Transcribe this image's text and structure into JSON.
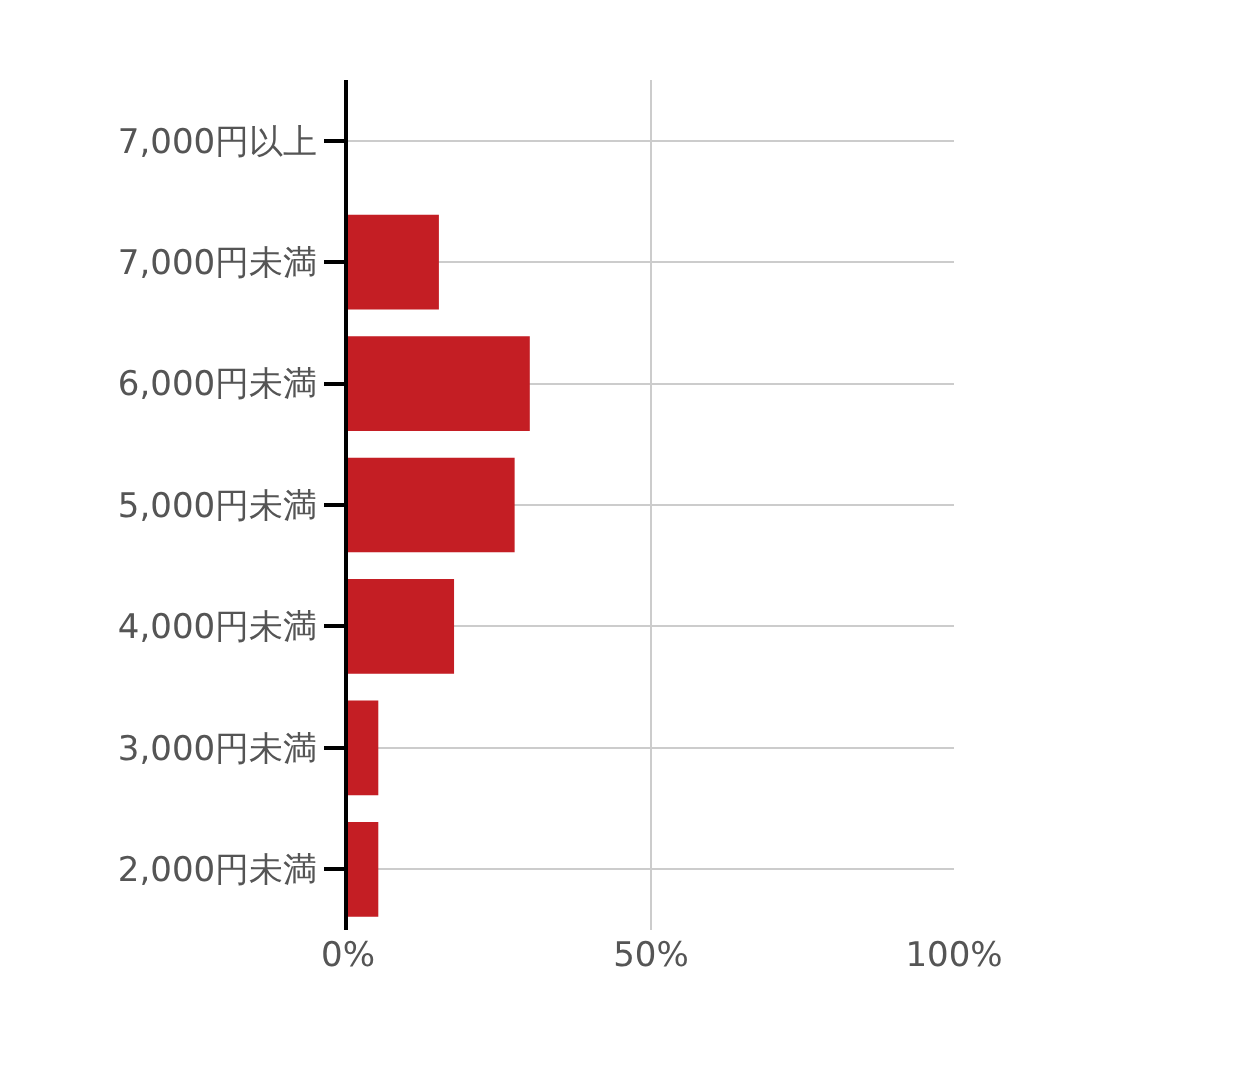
{
  "chart_data": {
    "type": "bar",
    "orientation": "horizontal",
    "categories": [
      "7,000円以上",
      "7,000円未満",
      "6,000円未満",
      "5,000円未満",
      "4,000円未満",
      "3,000円未満",
      "2,000円未満"
    ],
    "values": [
      0,
      15,
      30,
      27.5,
      17.5,
      5,
      5
    ],
    "color": "#c41e24",
    "xlim": [
      0,
      100
    ],
    "xticks": [
      {
        "value": 0,
        "label": "0%"
      },
      {
        "value": 50,
        "label": "50%"
      },
      {
        "value": 100,
        "label": "100%"
      }
    ],
    "grid": true
  }
}
